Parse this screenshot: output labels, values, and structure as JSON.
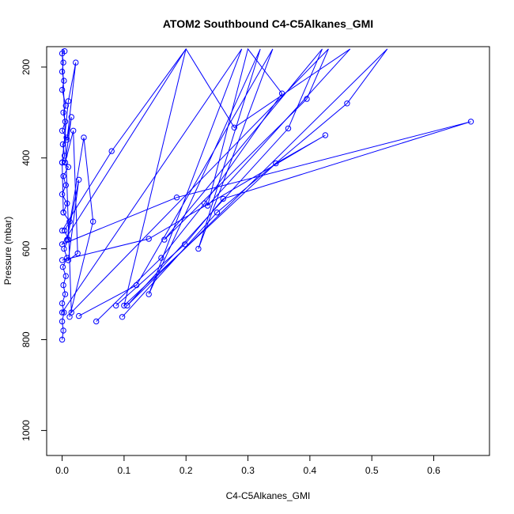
{
  "chart_data": {
    "type": "line",
    "title": "ATOM2 Southbound C4-C5Alkanes_GMI",
    "xlabel": "C4-C5Alkanes_GMI",
    "ylabel": "Pressure (mbar)",
    "xlim": [
      -0.025,
      0.69
    ],
    "ylim": [
      1055,
      155
    ],
    "y_reversed": true,
    "x_ticks": [
      0.0,
      0.1,
      0.2,
      0.3,
      0.4,
      0.5,
      0.6
    ],
    "x_tick_labels": [
      "0.0",
      "0.1",
      "0.2",
      "0.3",
      "0.4",
      "0.5",
      "0.6"
    ],
    "y_ticks": [
      200,
      400,
      600,
      800,
      1000
    ],
    "y_tick_labels": [
      "200",
      "400",
      "600",
      "800",
      "1000"
    ],
    "grid": false,
    "legend": "none",
    "colors": {
      "series": "#0000ff",
      "axis": "#000000",
      "background": "#ffffff"
    },
    "marker": "open-circle",
    "series": [
      {
        "points": [
          [
            0.0,
            800
          ],
          [
            0.002,
            780
          ],
          [
            0.0,
            760
          ],
          [
            0.003,
            740
          ],
          [
            0.0,
            720
          ],
          [
            0.005,
            700
          ],
          [
            0.002,
            680
          ],
          [
            0.006,
            660
          ],
          [
            0.001,
            640
          ],
          [
            0.008,
            620
          ],
          [
            0.003,
            600
          ],
          [
            0.01,
            580
          ],
          [
            0.004,
            560
          ],
          [
            0.012,
            540
          ],
          [
            0.002,
            520
          ],
          [
            0.008,
            500
          ],
          [
            0.0,
            480
          ],
          [
            0.006,
            460
          ],
          [
            0.002,
            440
          ],
          [
            0.01,
            420
          ],
          [
            0.0,
            410
          ],
          [
            0.004,
            395
          ],
          [
            0.001,
            370
          ],
          [
            0.007,
            355
          ],
          [
            0.0,
            340
          ],
          [
            0.005,
            320
          ],
          [
            0.002,
            300
          ],
          [
            0.006,
            285
          ],
          [
            0.0,
            250
          ],
          [
            0.003,
            230
          ],
          [
            0.0,
            210
          ],
          [
            0.002,
            190
          ],
          [
            0.0,
            170
          ],
          [
            0.004,
            165
          ],
          [
            0.001,
            160
          ]
        ]
      },
      {
        "points": [
          [
            0.012,
            750
          ],
          [
            0.05,
            540
          ],
          [
            0.035,
            355
          ],
          [
            0.008,
            580
          ],
          [
            0.027,
            448
          ],
          [
            0.01,
            625
          ],
          [
            0.025,
            610
          ],
          [
            0.018,
            340
          ],
          [
            0.005,
            410
          ],
          [
            0.015,
            310
          ],
          [
            0.008,
            360
          ],
          [
            0.022,
            190
          ],
          [
            0.01,
            275
          ],
          [
            0.0,
            410
          ],
          [
            0.002,
            520
          ]
        ]
      },
      {
        "points": [
          [
            0.055,
            760
          ],
          [
            0.16,
            620
          ],
          [
            0.23,
            500
          ],
          [
            0.355,
            258
          ],
          [
            0.3,
            160
          ],
          [
            0.235,
            505
          ],
          [
            0.465,
            160
          ],
          [
            0.278,
            333
          ],
          [
            0.2,
            160
          ],
          [
            0.08,
            385
          ],
          [
            0.0,
            560
          ]
        ]
      },
      {
        "points": [
          [
            0.087,
            725
          ],
          [
            0.198,
            590
          ],
          [
            0.26,
            490
          ],
          [
            0.66,
            320
          ],
          [
            0.185,
            487
          ],
          [
            0.0,
            590
          ],
          [
            0.2,
            160
          ],
          [
            0.1,
            725
          ],
          [
            0.345,
            412
          ],
          [
            0.425,
            350
          ],
          [
            0.14,
            578
          ],
          [
            0.0,
            625
          ]
        ]
      },
      {
        "points": [
          [
            0.097,
            750
          ],
          [
            0.25,
            520
          ],
          [
            0.46,
            280
          ],
          [
            0.525,
            160
          ],
          [
            0.105,
            725
          ],
          [
            0.365,
            335
          ],
          [
            0.42,
            160
          ],
          [
            0.165,
            580
          ],
          [
            0.395,
            270
          ],
          [
            0.43,
            160
          ],
          [
            0.015,
            740
          ],
          [
            0.0,
            160
          ]
        ]
      },
      {
        "points": [
          [
            0.027,
            748
          ],
          [
            0.12,
            680
          ],
          [
            0.34,
            160
          ],
          [
            0.22,
            600
          ],
          [
            0.32,
            160
          ],
          [
            0.14,
            700
          ],
          [
            0.29,
            160
          ],
          [
            0.0,
            740
          ]
        ]
      }
    ]
  }
}
